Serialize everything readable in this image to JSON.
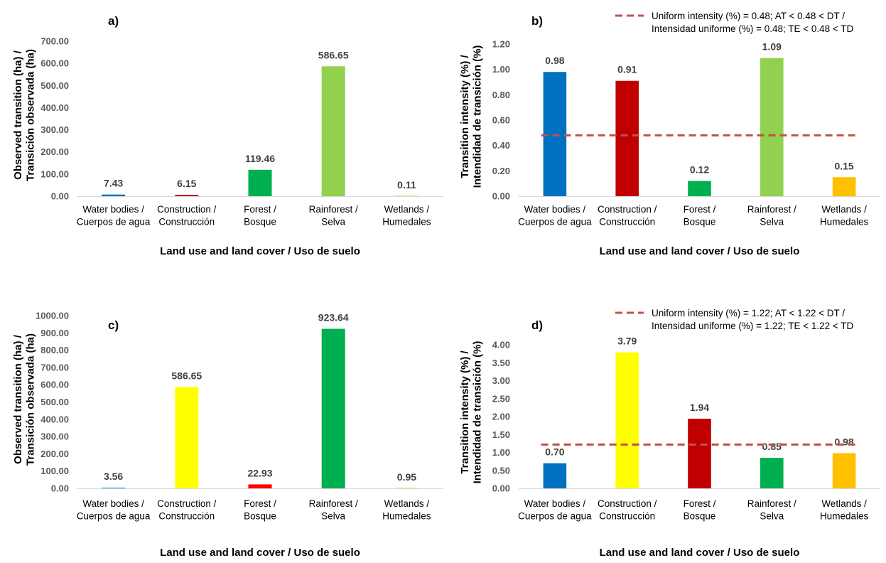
{
  "colors": {
    "blue": "#0070c0",
    "darkred": "#c00000",
    "red": "#ff0000",
    "green": "#00b050",
    "lightgreen": "#92d050",
    "yellow": "#ffff00",
    "orange": "#ffc000",
    "uniform_line": "#c0504d"
  },
  "chart_data": [
    {
      "id": "a",
      "type": "bar",
      "panel_label": "a)",
      "categories": [
        [
          "Water bodies /",
          "Cuerpos de agua"
        ],
        [
          "Construction /",
          "Construcción"
        ],
        [
          "Forest /",
          "Bosque"
        ],
        [
          "Rainforest /",
          "Selva"
        ],
        [
          "Wetlands /",
          "Humedales"
        ]
      ],
      "values": [
        7.43,
        6.15,
        119.46,
        586.65,
        0.11
      ],
      "value_labels": [
        "7.43",
        "6.15",
        "119.46",
        "586.65",
        "0.11"
      ],
      "bar_colors": [
        "blue",
        "darkred",
        "green",
        "lightgreen",
        "orange"
      ],
      "ylabel": [
        "Observed transition (ha) /",
        "Transición observada (ha)"
      ],
      "xlabel": "Land use and land cover / Uso de suelo",
      "ylim": [
        0,
        700
      ],
      "yticks": [
        0,
        100,
        200,
        300,
        400,
        500,
        600,
        700
      ],
      "ytick_labels": [
        "0.00",
        "100.00",
        "200.00",
        "300.00",
        "400.00",
        "500.00",
        "600.00",
        "700.00"
      ]
    },
    {
      "id": "b",
      "type": "bar",
      "panel_label": "b)",
      "categories": [
        [
          "Water bodies /",
          "Cuerpos de agua"
        ],
        [
          "Construction /",
          "Construcción"
        ],
        [
          "Forest /",
          "Bosque"
        ],
        [
          "Rainforest /",
          "Selva"
        ],
        [
          "Wetlands /",
          "Humedales"
        ]
      ],
      "values": [
        0.98,
        0.91,
        0.12,
        1.09,
        0.15
      ],
      "value_labels": [
        "0.98",
        "0.91",
        "0.12",
        "1.09",
        "0.15"
      ],
      "bar_colors": [
        "blue",
        "darkred",
        "green",
        "lightgreen",
        "orange"
      ],
      "ylabel": [
        "Transition intensity (%) /",
        "Intendidad de transición (%)"
      ],
      "xlabel": "Land use and land cover / Uso de suelo",
      "ylim": [
        0,
        1.2
      ],
      "yticks": [
        0,
        0.2,
        0.4,
        0.6,
        0.8,
        1.0,
        1.2
      ],
      "ytick_labels": [
        "0.00",
        "0.20",
        "0.40",
        "0.60",
        "0.80",
        "1.00",
        "1.20"
      ],
      "uniform_intensity": 0.48,
      "legend": [
        "Uniform intensity (%) = 0.48; AT < 0.48 < DT /",
        "Intensidad uniforme (%) = 0.48; TE < 0.48 < TD"
      ],
      "legend_position": "top-right"
    },
    {
      "id": "c",
      "type": "bar",
      "panel_label": "c)",
      "categories": [
        [
          "Water bodies /",
          "Cuerpos de agua"
        ],
        [
          "Construction /",
          "Construcción"
        ],
        [
          "Forest /",
          "Bosque"
        ],
        [
          "Rainforest /",
          "Selva"
        ],
        [
          "Wetlands /",
          "Humedales"
        ]
      ],
      "values": [
        3.56,
        586.65,
        22.93,
        923.64,
        0.95
      ],
      "value_labels": [
        "3.56",
        "586.65",
        "22.93",
        "923.64",
        "0.95"
      ],
      "bar_colors": [
        "blue",
        "yellow",
        "red",
        "green",
        "orange"
      ],
      "ylabel": [
        "Observed transition (ha) /",
        "Transición observada (ha)"
      ],
      "xlabel": "Land use and land cover / Uso de suelo",
      "ylim": [
        0,
        1000
      ],
      "yticks": [
        0,
        100,
        200,
        300,
        400,
        500,
        600,
        700,
        800,
        900,
        1000
      ],
      "ytick_labels": [
        "0.00",
        "100.00",
        "200.00",
        "300.00",
        "400.00",
        "500.00",
        "600.00",
        "700.00",
        "800.00",
        "900.00",
        "1000.00"
      ]
    },
    {
      "id": "d",
      "type": "bar",
      "panel_label": "d)",
      "categories": [
        [
          "Water bodies /",
          "Cuerpos de agua"
        ],
        [
          "Construction /",
          "Construcción"
        ],
        [
          "Forest /",
          "Bosque"
        ],
        [
          "Rainforest /",
          "Selva"
        ],
        [
          "Wetlands /",
          "Humedales"
        ]
      ],
      "values": [
        0.7,
        3.79,
        1.94,
        0.85,
        0.98
      ],
      "value_labels": [
        "0.70",
        "3.79",
        "1.94",
        "0.85",
        "0.98"
      ],
      "bar_colors": [
        "blue",
        "yellow",
        "darkred",
        "green",
        "orange"
      ],
      "ylabel": [
        "Transition intensity (%) /",
        "Intendidad de transición (%)"
      ],
      "xlabel": "Land use and land cover / Uso de suelo",
      "ylim": [
        0,
        4.0
      ],
      "yticks": [
        0,
        0.5,
        1.0,
        1.5,
        2.0,
        2.5,
        3.0,
        3.5,
        4.0
      ],
      "ytick_labels": [
        "0.00",
        "0.50",
        "1.00",
        "1.50",
        "2.00",
        "2.50",
        "3.00",
        "3.50",
        "4.00"
      ],
      "uniform_intensity": 1.22,
      "legend": [
        "Uniform intensity (%) = 1.22; AT < 1.22 < DT /",
        "Intensidad uniforme (%) = 1.22; TE < 1.22 < TD"
      ],
      "legend_position": "top-right"
    }
  ]
}
